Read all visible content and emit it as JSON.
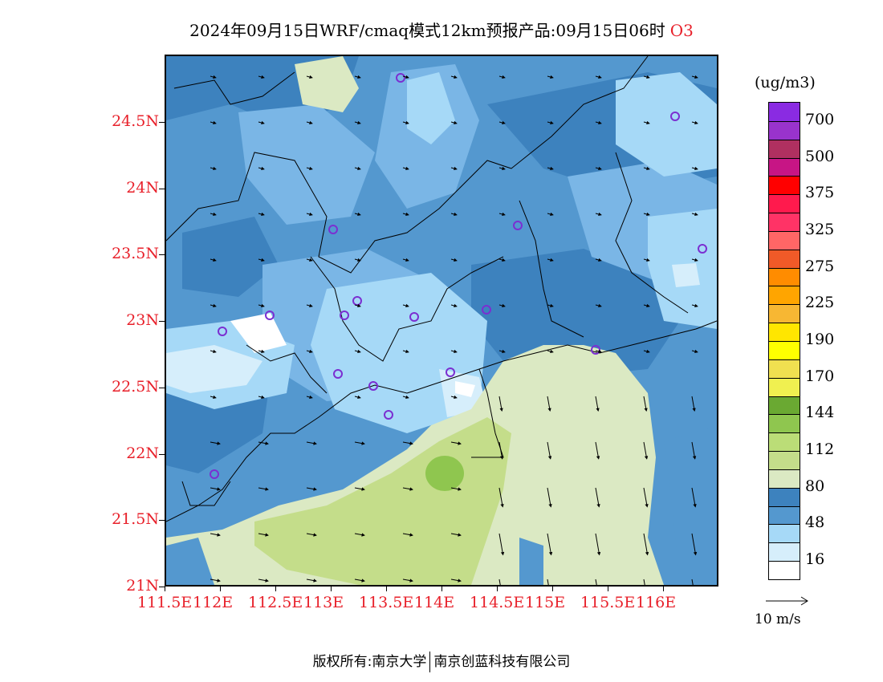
{
  "title": {
    "text": "2024年09月15日WRF/cmaq模式12km预报产品:09月15日06时",
    "species": "O3"
  },
  "map": {
    "lat_labels": [
      "24.5N",
      "24N",
      "23.5N",
      "23N",
      "22.5N",
      "22N",
      "21.5N",
      "21N"
    ],
    "lon_labels": [
      "111.5E",
      "112E",
      "112.5E",
      "113E",
      "113.5E",
      "114E",
      "114.5E",
      "115E",
      "115.5E",
      "116E"
    ],
    "land_colors": {
      "darkest": "#3d82be",
      "dark": "#5498cf",
      "mid": "#7ab6e6",
      "light": "#a6d9f7",
      "lighter": "#d6eefb",
      "white": "#ffffff"
    },
    "sea_colors": {
      "pale": "#dbe9c3",
      "light_green": "#c4dd8a",
      "green": "#8fc64f"
    },
    "station_marker_color": "#7b2fd1",
    "boundary_color": "#000000"
  },
  "colorbar": {
    "unit": "(ug/m3)",
    "bins": [
      {
        "color": "#8a2be2"
      },
      {
        "color": "#9933cc"
      },
      {
        "color": "#b03060"
      },
      {
        "color": "#c71585"
      },
      {
        "color": "#ff0000"
      },
      {
        "color": "#ff1a4d"
      },
      {
        "color": "#ff3366"
      },
      {
        "color": "#ff6666"
      },
      {
        "color": "#f05a28"
      },
      {
        "color": "#ff8c00"
      },
      {
        "color": "#ffa500"
      },
      {
        "color": "#f7b733"
      },
      {
        "color": "#ffe600"
      },
      {
        "color": "#ffff00"
      },
      {
        "color": "#f0e050"
      },
      {
        "color": "#f0f050"
      },
      {
        "color": "#6aa932"
      },
      {
        "color": "#8fc64f"
      },
      {
        "color": "#bbdd77"
      },
      {
        "color": "#c4dd8a"
      },
      {
        "color": "#dbe9c3"
      },
      {
        "color": "#3d82be"
      },
      {
        "color": "#5498cf"
      },
      {
        "color": "#a6d9f7"
      },
      {
        "color": "#d6eefb"
      },
      {
        "color": "#ffffff"
      }
    ],
    "labels": [
      "700",
      "500",
      "375",
      "325",
      "275",
      "225",
      "190",
      "170",
      "144",
      "112",
      "80",
      "48",
      "16"
    ]
  },
  "wind_reference": "10 m/s",
  "copyright": {
    "owner1": "版权所有:南京大学",
    "owner2": "南京创蓝科技有限公司"
  }
}
